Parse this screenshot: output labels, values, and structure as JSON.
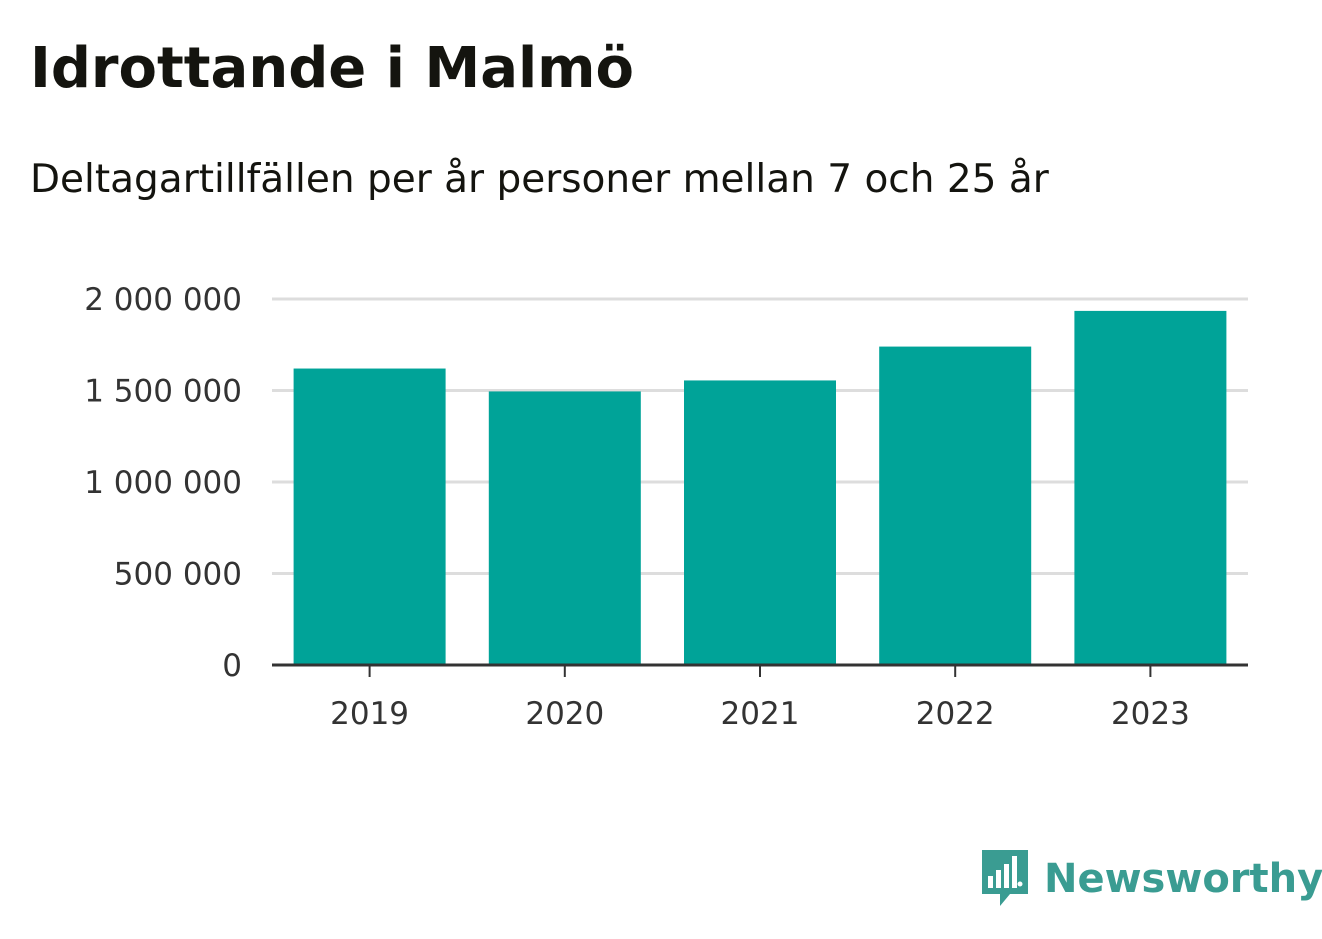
{
  "header": {
    "title": "Idrottande i Malmö",
    "subtitle": "Deltagartillfällen per år personer mellan 7 och 25 år"
  },
  "brand": {
    "name": "Newsworthy",
    "logo_icon": "bar-chart-speech-bubble-icon",
    "color": "#3a9c92"
  },
  "colors": {
    "bar": "#00a398",
    "grid": "#dddddd",
    "axis": "#333333"
  },
  "chart_data": {
    "type": "bar",
    "categories": [
      "2019",
      "2020",
      "2021",
      "2022",
      "2023"
    ],
    "values": [
      1620000,
      1495000,
      1555000,
      1740000,
      1935000
    ],
    "ylim": [
      0,
      2000000
    ],
    "yticks": [
      0,
      500000,
      1000000,
      1500000,
      2000000
    ],
    "ytick_labels": [
      "0",
      "500 000",
      "1 000 000",
      "1 500 000",
      "2 000 000"
    ],
    "xlabel": "",
    "ylabel": "",
    "grid": true,
    "legend": false
  }
}
